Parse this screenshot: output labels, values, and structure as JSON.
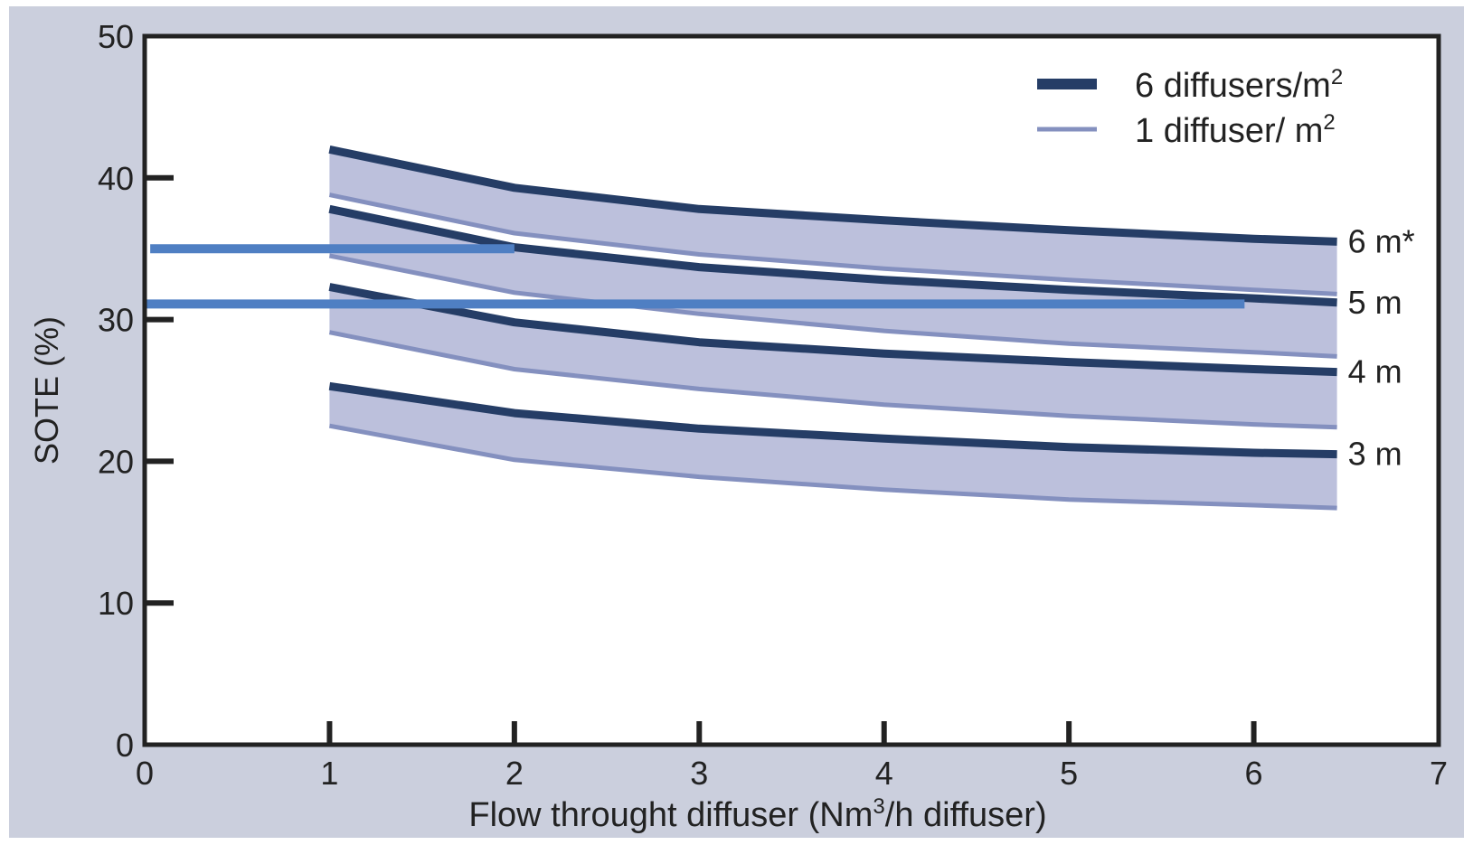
{
  "chart_data": {
    "type": "area",
    "xlabel_main": "Flow throught diffuser (Nm",
    "xlabel_sup": "3",
    "xlabel_tail": "/h diffuser)",
    "ylabel": "SOTE (%)",
    "xlim": [
      0,
      7
    ],
    "ylim": [
      0,
      50
    ],
    "xticks": [
      "0",
      "1",
      "2",
      "3",
      "4",
      "5",
      "6",
      "7"
    ],
    "yticks": [
      "0",
      "10",
      "20",
      "30",
      "40",
      "50"
    ],
    "grid": false,
    "legend_position": "top-right",
    "legend": [
      {
        "label": "6 diffusers/m",
        "sup": "2",
        "style": "thick-dark"
      },
      {
        "label": "1 diffuser/ m",
        "sup": "2",
        "style": "thin-light"
      }
    ],
    "x": [
      1,
      2,
      3,
      4,
      5,
      6,
      6.45
    ],
    "bands": [
      {
        "depth_label": "6 m*",
        "six_diffusers": [
          42.0,
          39.3,
          37.8,
          37.0,
          36.3,
          35.7,
          35.5
        ],
        "one_diffuser": [
          38.8,
          36.1,
          34.6,
          33.6,
          32.8,
          32.1,
          31.8
        ]
      },
      {
        "depth_label": "5 m",
        "six_diffusers": [
          37.8,
          35.1,
          33.7,
          32.8,
          32.1,
          31.5,
          31.2
        ],
        "one_diffuser": [
          34.5,
          31.9,
          30.4,
          29.2,
          28.3,
          27.7,
          27.4
        ]
      },
      {
        "depth_label": "4 m",
        "six_diffusers": [
          32.3,
          29.8,
          28.4,
          27.6,
          27.0,
          26.5,
          26.3
        ],
        "one_diffuser": [
          29.1,
          26.5,
          25.1,
          24.0,
          23.2,
          22.6,
          22.4
        ]
      },
      {
        "depth_label": "3 m",
        "six_diffusers": [
          25.3,
          23.4,
          22.3,
          21.6,
          21.0,
          20.6,
          20.5
        ],
        "one_diffuser": [
          22.5,
          20.1,
          18.9,
          18.0,
          17.3,
          16.9,
          16.7
        ]
      }
    ],
    "reference_lines": [
      {
        "y": 35.0,
        "x_start": 0.03,
        "x_end": 2.0
      },
      {
        "y": 31.1,
        "x_start": 0.0,
        "x_end": 5.95
      }
    ],
    "colors": {
      "frame_bg": "#cbcfdd",
      "plot_bg": "#ffffff",
      "band_fill": "#bcc0dc",
      "six_line": "#253d66",
      "one_line": "#8490bf",
      "ref_line": "#4f7fc3",
      "axis": "#222222"
    }
  }
}
